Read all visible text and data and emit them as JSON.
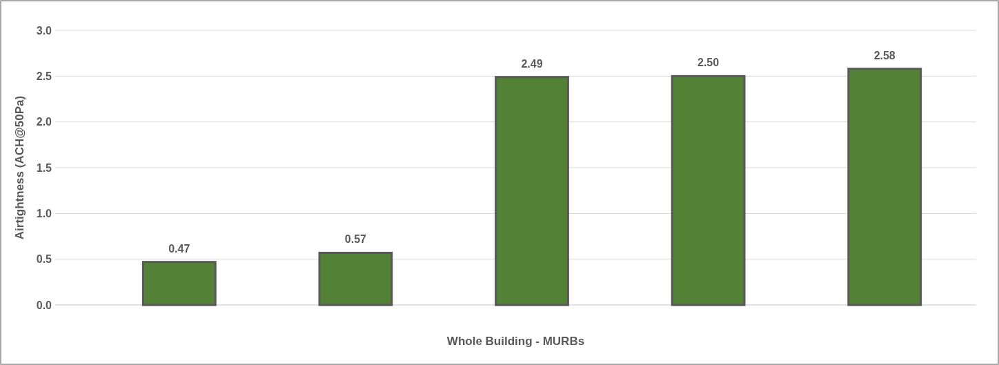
{
  "chart_data": {
    "type": "bar",
    "xlabel": "Whole Building - MURBs",
    "ylabel": "Airtightness (ACH@50Pa)",
    "categories": [
      null,
      null,
      null,
      null,
      null
    ],
    "values": [
      0.47,
      0.57,
      2.49,
      2.5,
      2.58
    ],
    "value_labels": [
      "0.47",
      "0.57",
      "2.49",
      "2.50",
      "2.58"
    ],
    "color": "#538135",
    "ylim": [
      0,
      3
    ],
    "yticks": [
      {
        "value": 0,
        "label": "0.0"
      },
      {
        "value": 0.5,
        "label": "0.5"
      },
      {
        "value": 1,
        "label": "1.0"
      },
      {
        "value": 1.5,
        "label": "1.5"
      },
      {
        "value": 2,
        "label": "2.0"
      },
      {
        "value": 2.5,
        "label": "2.5"
      },
      {
        "value": 3,
        "label": "3.0"
      }
    ],
    "grid": "y",
    "tick_labels": "y"
  }
}
